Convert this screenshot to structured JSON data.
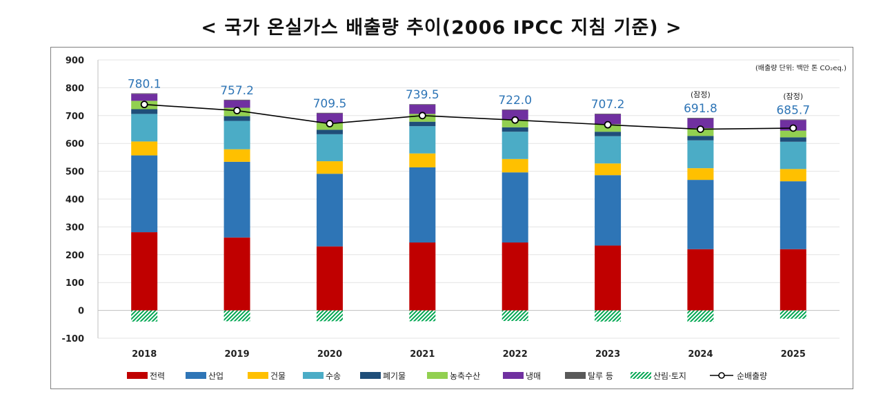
{
  "title": "< 국가 온실가스 배출량 추이(2006 IPCC 지침 기준) >",
  "unit_note": "(배출량 단위: 백만 톤 CO₂eq.)",
  "chart_data": {
    "type": "bar",
    "stacked": true,
    "categories": [
      "2018",
      "2019",
      "2020",
      "2021",
      "2022",
      "2023",
      "2024",
      "2025"
    ],
    "ylim": [
      -100,
      900
    ],
    "yticks": [
      900,
      800,
      700,
      600,
      500,
      400,
      300,
      200,
      100,
      0,
      -100
    ],
    "grid": true,
    "legend_position": "bottom",
    "series": [
      {
        "name": "전력",
        "color": "#c00000",
        "values": [
          281,
          262,
          230,
          244,
          244,
          233,
          220,
          220
        ]
      },
      {
        "name": "산업",
        "color": "#2e75b6",
        "values": [
          276,
          272,
          261,
          270,
          252,
          253,
          249,
          244
        ]
      },
      {
        "name": "건물",
        "color": "#ffc000",
        "values": [
          50,
          45,
          45,
          50,
          48,
          42,
          42,
          44
        ]
      },
      {
        "name": "수송",
        "color": "#4bacc6",
        "values": [
          99,
          102,
          97,
          98,
          98,
          98,
          100,
          98
        ]
      },
      {
        "name": "폐기물",
        "color": "#1f4e79",
        "values": [
          17,
          17,
          16,
          16,
          16,
          16,
          16,
          16
        ]
      },
      {
        "name": "농축수산",
        "color": "#92d050",
        "values": [
          30,
          30,
          25,
          28,
          27,
          27,
          28,
          24
        ]
      },
      {
        "name": "냉매",
        "color": "#7030a0",
        "values": [
          25,
          27,
          34,
          33,
          35,
          36,
          35,
          38
        ]
      },
      {
        "name": "탈루 등",
        "color": "#595959",
        "values": [
          2,
          2,
          2,
          2,
          2,
          2,
          2,
          2
        ]
      },
      {
        "name": "산림·토지",
        "color": "#00a651",
        "pattern": "hatch",
        "values": [
          -40,
          -39,
          -39,
          -39,
          -38,
          -40,
          -41,
          -30
        ]
      },
      {
        "name": "순배출량",
        "type": "line",
        "color": "#000000",
        "values": [
          740,
          718,
          671,
          700,
          684,
          667,
          651,
          655
        ]
      }
    ],
    "totals": [
      "780.1",
      "757.2",
      "709.5",
      "739.5",
      "722.0",
      "707.2",
      "691.8",
      "685.7"
    ],
    "provisional_label": "(잠정)",
    "provisional_years": [
      "2024",
      "2025"
    ]
  }
}
